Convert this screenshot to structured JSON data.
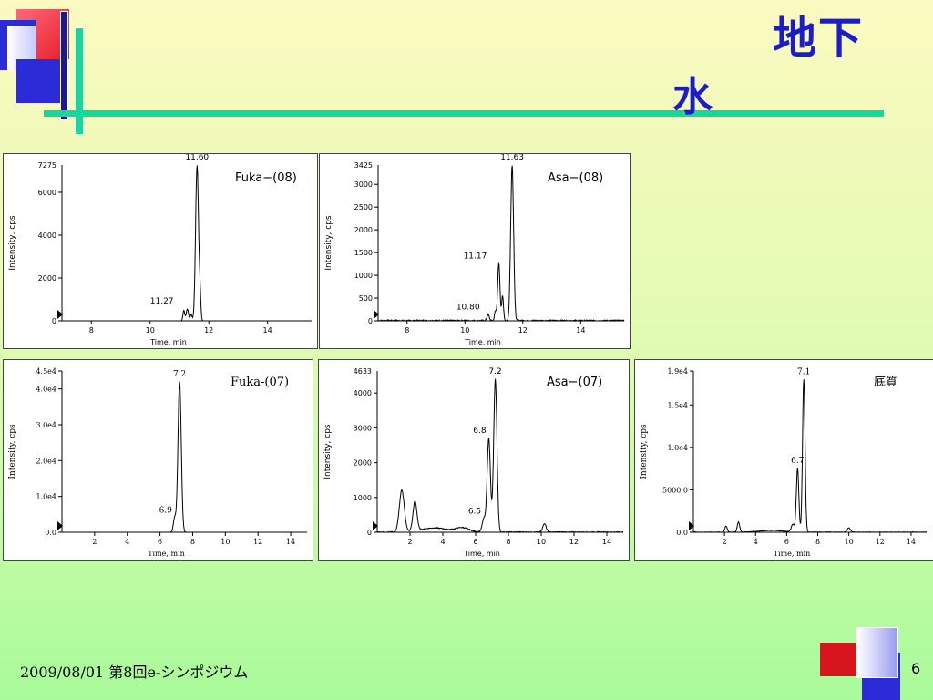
{
  "slide": {
    "title_line1": "地下",
    "title_line2": "水",
    "footer_date": "2009/08/01  第8回e-シンポジウム",
    "page_number": "6"
  },
  "colors": {
    "title": "#1c1ccf",
    "accent_line": "#14d99b",
    "deco_red": "#e81c2a",
    "deco_blue": "#1c1ccf"
  },
  "chart_data": [
    {
      "type": "line",
      "label": "Fuka−(08)",
      "xlabel": "Time, min",
      "ylabel": "Intensity, cps",
      "xlim": [
        7,
        15.5
      ],
      "ylim": [
        0,
        7275
      ],
      "xticks": [
        8,
        10,
        12,
        14
      ],
      "yticks": [
        0,
        2000,
        4000,
        6000
      ],
      "ytick_labels": [
        "0",
        "2000",
        "4000",
        "6000"
      ],
      "ymax_label": "7275",
      "peaks": [
        {
          "x": 11.6,
          "y": 7275,
          "w": 0.05
        },
        {
          "x": 11.27,
          "y": 550,
          "w": 0.04
        },
        {
          "x": 11.15,
          "y": 480,
          "w": 0.03
        },
        {
          "x": 11.4,
          "y": 300,
          "w": 0.03
        },
        {
          "x": 11.7,
          "y": 1000,
          "w": 0.03
        }
      ],
      "annotations": [
        {
          "text": "11.60",
          "x": 11.6,
          "y": 7275,
          "dx": 0,
          "dy": -6
        },
        {
          "text": "11.27",
          "x": 11.27,
          "y": 550,
          "dx": -28,
          "dy": -6
        }
      ]
    },
    {
      "type": "line",
      "label": "Asa−(08)",
      "xlabel": "Time, min",
      "ylabel": "Intensity, cps",
      "xlim": [
        7,
        15.5
      ],
      "ylim": [
        0,
        3425
      ],
      "xticks": [
        8,
        10,
        12,
        14
      ],
      "yticks": [
        0,
        500,
        1000,
        1500,
        2000,
        2500,
        3000
      ],
      "ytick_labels": [
        "0",
        "500",
        "1000",
        "1500",
        "2000",
        "2500",
        "3000"
      ],
      "ymax_label": "3425",
      "peaks": [
        {
          "x": 11.63,
          "y": 3425,
          "w": 0.05
        },
        {
          "x": 11.17,
          "y": 1250,
          "w": 0.04
        },
        {
          "x": 11.3,
          "y": 550,
          "w": 0.03
        },
        {
          "x": 10.8,
          "y": 130,
          "w": 0.04
        },
        {
          "x": 11.05,
          "y": 200,
          "w": 0.03
        }
      ],
      "noise": 30,
      "annotations": [
        {
          "text": "11.63",
          "x": 11.63,
          "y": 3425,
          "dx": 0,
          "dy": -6
        },
        {
          "text": "11.17",
          "x": 11.17,
          "y": 1250,
          "dx": -26,
          "dy": -6
        },
        {
          "text": "10.80",
          "x": 10.8,
          "y": 130,
          "dx": -22,
          "dy": -6
        }
      ]
    },
    {
      "type": "line",
      "label": "Fuka-(07)",
      "xlabel": "Time, min",
      "ylabel": "Intensity, cps",
      "xlim": [
        0,
        15
      ],
      "ylim": [
        0,
        45000
      ],
      "xticks": [
        2,
        4,
        6,
        8,
        10,
        12,
        14
      ],
      "yticks": [
        0,
        10000,
        20000,
        30000,
        40000,
        45000
      ],
      "ytick_labels": [
        "0.0",
        "1.0e4",
        "2.0e4",
        "3.0e4",
        "4.0e4",
        "4.5e4"
      ],
      "ymax_label": "",
      "peaks": [
        {
          "x": 7.2,
          "y": 42000,
          "w": 0.1
        },
        {
          "x": 6.9,
          "y": 4000,
          "w": 0.08
        }
      ],
      "annotations": [
        {
          "text": "7.2",
          "x": 7.2,
          "y": 42000,
          "dx": 0,
          "dy": -6
        },
        {
          "text": "6.9",
          "x": 6.9,
          "y": 4000,
          "dx": -10,
          "dy": -6
        }
      ]
    },
    {
      "type": "line",
      "label": "Asa−(07)",
      "xlabel": "Time, min",
      "ylabel": "Intensity, cps",
      "xlim": [
        0,
        15
      ],
      "ylim": [
        0,
        4633
      ],
      "xticks": [
        2,
        4,
        6,
        8,
        10,
        12,
        14
      ],
      "yticks": [
        0,
        1000,
        2000,
        3000,
        4000
      ],
      "ytick_labels": [
        "0",
        "1000",
        "2000",
        "3000",
        "4000"
      ],
      "ymax_label": "4633",
      "peaks": [
        {
          "x": 7.2,
          "y": 4400,
          "w": 0.1
        },
        {
          "x": 6.8,
          "y": 2700,
          "w": 0.1
        },
        {
          "x": 6.5,
          "y": 380,
          "w": 0.1
        },
        {
          "x": 1.5,
          "y": 1200,
          "w": 0.15
        },
        {
          "x": 2.3,
          "y": 850,
          "w": 0.12
        },
        {
          "x": 10.2,
          "y": 250,
          "w": 0.1
        },
        {
          "x": 3.5,
          "y": 120,
          "w": 0.8
        },
        {
          "x": 5.2,
          "y": 120,
          "w": 0.4
        }
      ],
      "noise": 25,
      "annotations": [
        {
          "text": "7.2",
          "x": 7.2,
          "y": 4400,
          "dx": 0,
          "dy": -6
        },
        {
          "text": "6.8",
          "x": 6.8,
          "y": 2700,
          "dx": -10,
          "dy": -6
        },
        {
          "text": "6.5",
          "x": 6.5,
          "y": 380,
          "dx": -10,
          "dy": -6
        }
      ]
    },
    {
      "type": "line",
      "label": "底質",
      "xlabel": "Time, min",
      "ylabel": "Intensity, cps",
      "xlim": [
        0,
        15
      ],
      "ylim": [
        0,
        19000
      ],
      "xticks": [
        2,
        4,
        6,
        8,
        10,
        12,
        14
      ],
      "yticks": [
        0,
        5000,
        10000,
        15000,
        19000
      ],
      "ytick_labels": [
        "0.0",
        "5000.0",
        "1.0e4",
        "1.5e4",
        "1.9e4"
      ],
      "ymax_label": "",
      "peaks": [
        {
          "x": 7.1,
          "y": 18000,
          "w": 0.08
        },
        {
          "x": 6.7,
          "y": 7500,
          "w": 0.08
        },
        {
          "x": 2.9,
          "y": 1200,
          "w": 0.08
        },
        {
          "x": 2.1,
          "y": 700,
          "w": 0.08
        },
        {
          "x": 6.4,
          "y": 900,
          "w": 0.1
        },
        {
          "x": 10.0,
          "y": 500,
          "w": 0.1
        },
        {
          "x": 5.0,
          "y": 200,
          "w": 0.8
        }
      ],
      "noise": 60,
      "annotations": [
        {
          "text": "7.1",
          "x": 7.1,
          "y": 18000,
          "dx": 0,
          "dy": -6
        },
        {
          "text": "6.7",
          "x": 6.7,
          "y": 7500,
          "dx": 0,
          "dy": -6
        }
      ]
    }
  ]
}
